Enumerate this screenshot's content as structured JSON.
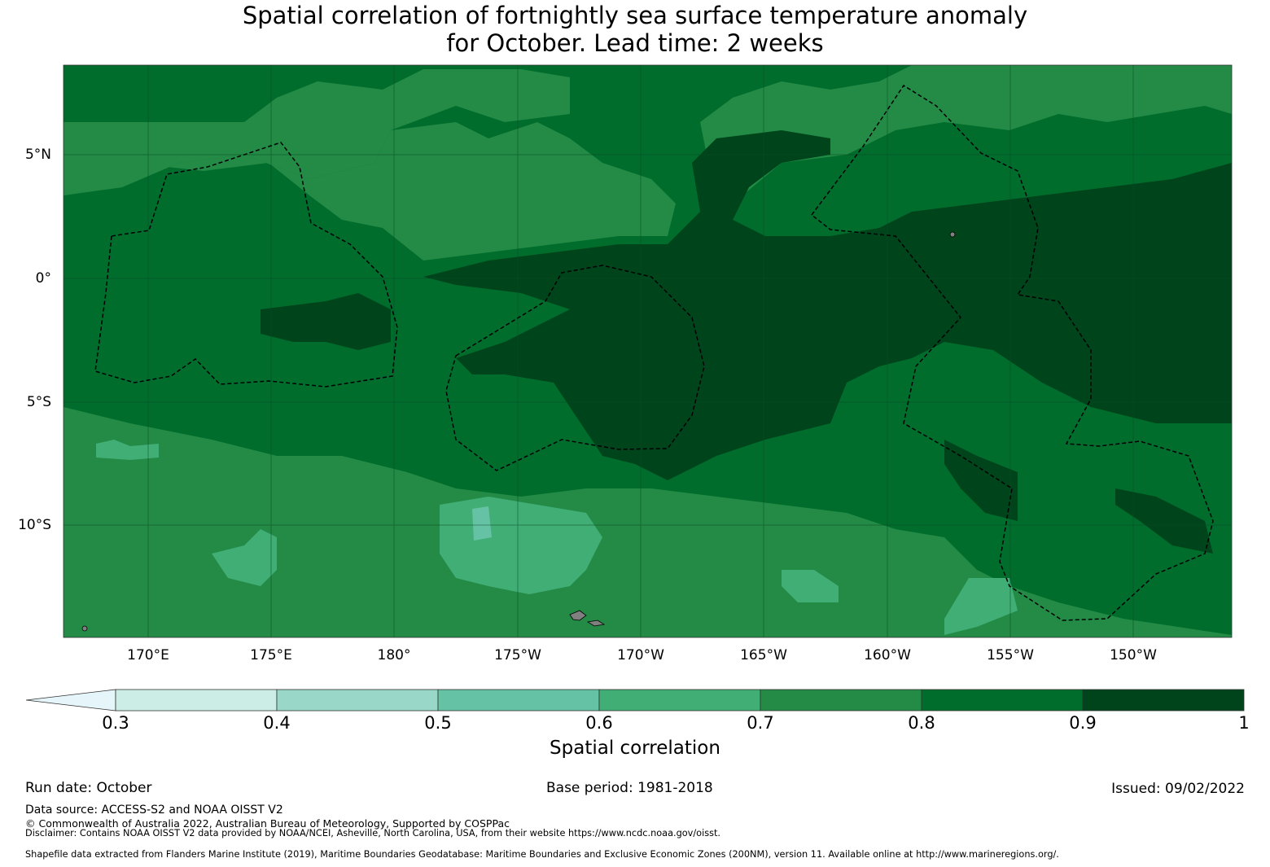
{
  "title": {
    "line1": "Spatial correlation of fortnightly sea surface temperature anomaly",
    "line2": "for October. Lead time: 2 weeks"
  },
  "map": {
    "lat_labels": [
      "5°N",
      "0°",
      "5°S",
      "10°S"
    ],
    "lon_labels": [
      "170°E",
      "175°E",
      "180°",
      "175°W",
      "170°W",
      "165°W",
      "160°W",
      "155°W",
      "150°W"
    ]
  },
  "colorbar": {
    "ticks": [
      "0.3",
      "0.4",
      "0.5",
      "0.6",
      "0.7",
      "0.8",
      "0.9",
      "1"
    ],
    "colors": [
      "#e5f5f9",
      "#ccece6",
      "#99d8c9",
      "#66c2a4",
      "#41ae76",
      "#238b45",
      "#006d2c",
      "#00441b"
    ],
    "label": "Spatial correlation"
  },
  "footer": {
    "run_date": "Run date: October",
    "base_period": "Base period: 1981-2018",
    "issued": "Issued: 09/02/2022",
    "data_source": "Data source: ACCESS-S2 and NOAA OISST V2",
    "copyright": "© Commonwealth of Australia 2022, Australian Bureau of Meteorology, Supported by COSPPac",
    "disclaimer": "Disclaimer: Contains NOAA OISST V2 data provided by NOAA/NCEI, Asheville, North Carolina, USA, from their website https://www.ncdc.noaa.gov/oisst.",
    "shapefile": "Shapefile data extracted from Flanders Marine Institute (2019), Maritime Boundaries Geodatabase: Maritime Boundaries and Exclusive Economic Zones (200NM), version 11. Available online at http://www.marineregions.org/."
  }
}
